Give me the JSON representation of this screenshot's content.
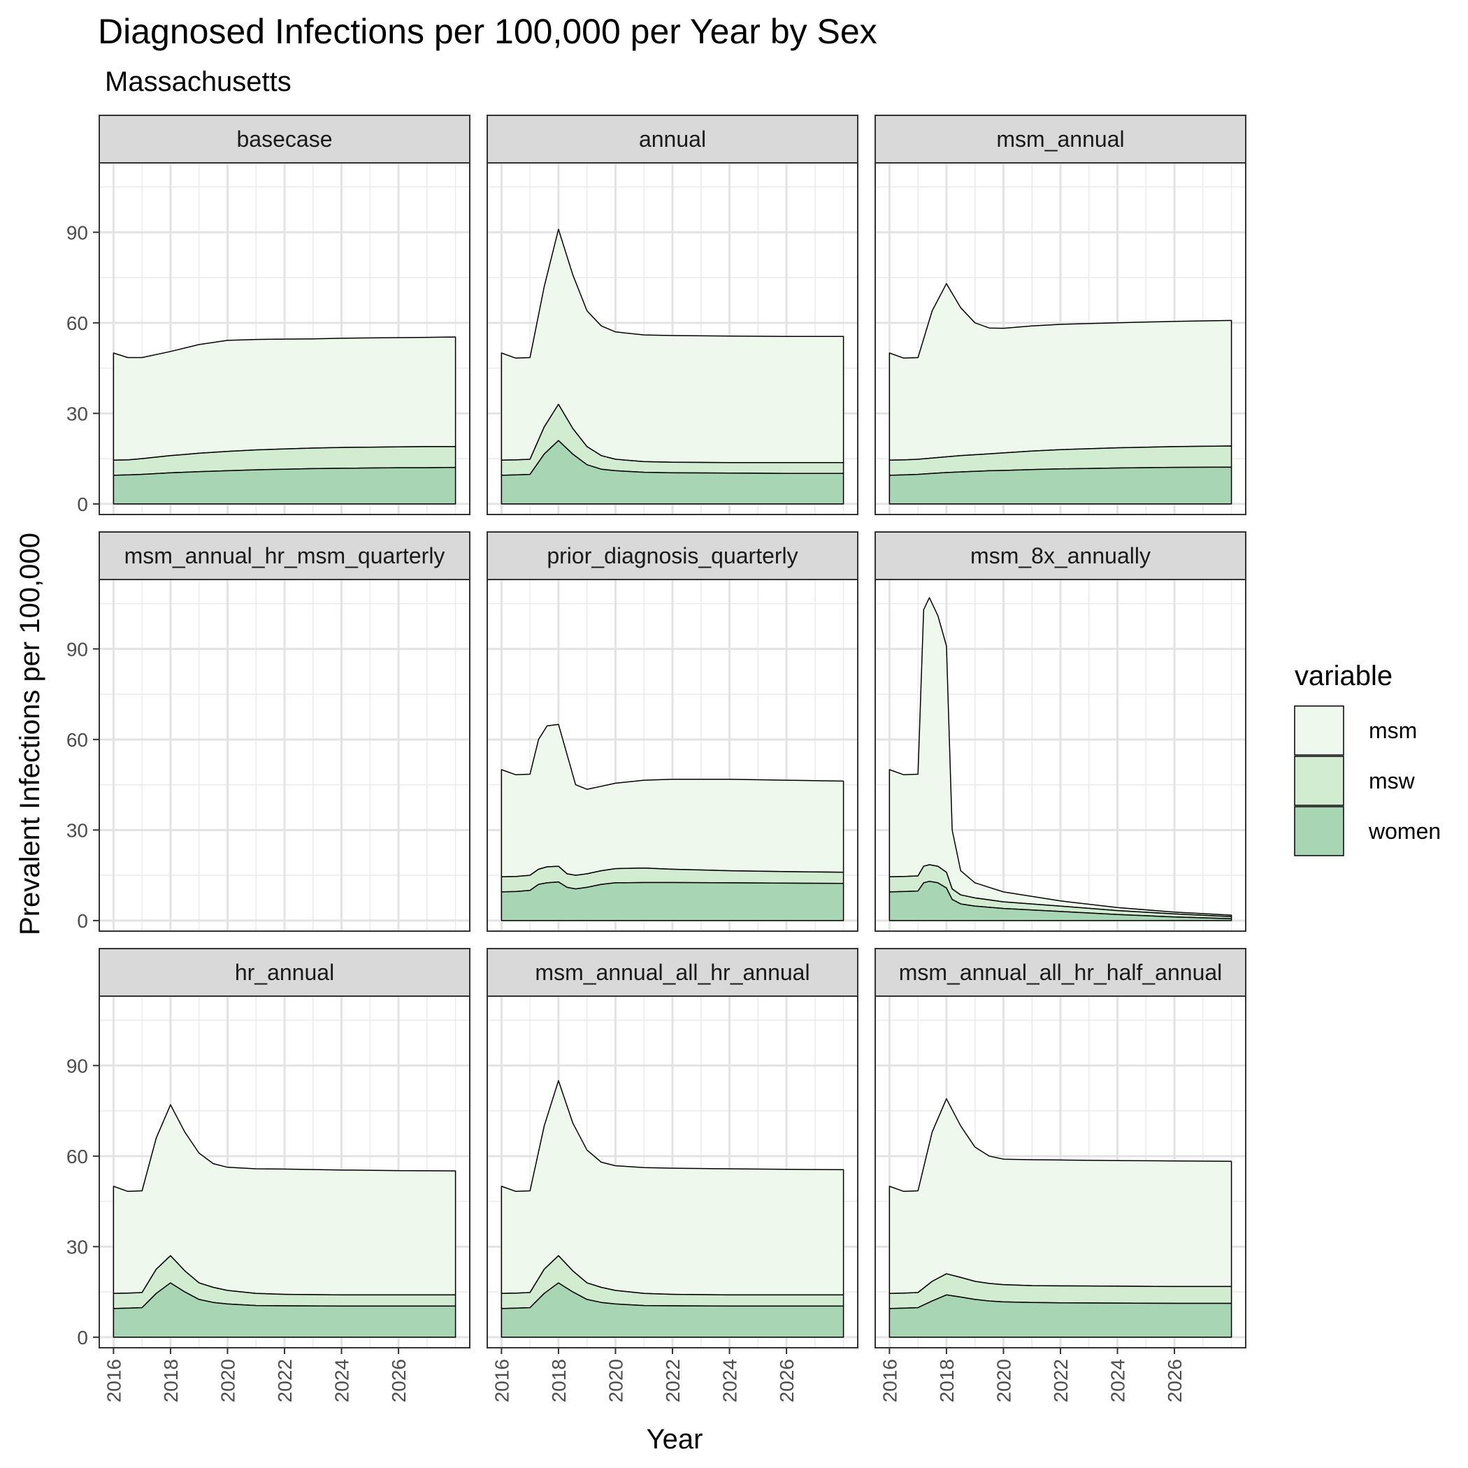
{
  "chart_data": {
    "type": "area",
    "stacked": true,
    "title": "Diagnosed Infections per 100,000 per Year by Sex",
    "subtitle": "Massachusetts",
    "xlabel": "Year",
    "ylabel": "Prevalent Infections per 100,000",
    "xlim": [
      2015.5,
      2028.5
    ],
    "ylim": [
      -3.5,
      113
    ],
    "x_ticks": [
      2016,
      2018,
      2020,
      2022,
      2024,
      2026
    ],
    "y_ticks": [
      0,
      30,
      60,
      90
    ],
    "grid": true,
    "legend": {
      "title": "variable",
      "position": "right",
      "entries": [
        {
          "name": "msm",
          "color": "#eff8ec"
        },
        {
          "name": "msw",
          "color": "#d1ecd0"
        },
        {
          "name": "women",
          "color": "#a8d6b4"
        }
      ]
    },
    "stack_order_bottom_to_top": [
      "women",
      "msw",
      "msm"
    ],
    "panels": [
      {
        "name": "basecase",
        "x": [
          2016,
          2016.5,
          2017,
          2018,
          2019,
          2020,
          2021,
          2022,
          2023,
          2024,
          2025,
          2026,
          2027,
          2028
        ],
        "women": [
          9.5,
          9.6,
          9.8,
          10.3,
          10.7,
          11.0,
          11.3,
          11.5,
          11.7,
          11.8,
          11.9,
          12.0,
          12.0,
          12.1
        ],
        "msw_top": [
          14.5,
          14.6,
          15.0,
          16.0,
          16.8,
          17.4,
          17.9,
          18.2,
          18.5,
          18.7,
          18.8,
          18.9,
          19.0,
          19.0
        ],
        "msm_top": [
          50.0,
          48.5,
          48.5,
          50.5,
          52.8,
          54.2,
          54.5,
          54.6,
          54.7,
          54.9,
          55.0,
          55.1,
          55.2,
          55.3
        ]
      },
      {
        "name": "annual",
        "x": [
          2016,
          2016.5,
          2017,
          2017.5,
          2018,
          2018.5,
          2019,
          2019.5,
          2020,
          2021,
          2022,
          2024,
          2026,
          2028
        ],
        "women": [
          9.5,
          9.6,
          9.8,
          16.5,
          21.0,
          16.5,
          13.0,
          11.5,
          11.0,
          10.5,
          10.3,
          10.2,
          10.1,
          10.1
        ],
        "msw_top": [
          14.5,
          14.6,
          14.8,
          25.5,
          33.0,
          25.0,
          19.0,
          16.0,
          14.8,
          14.0,
          13.8,
          13.7,
          13.7,
          13.7
        ],
        "msm_top": [
          50.0,
          48.3,
          48.5,
          72.0,
          91.0,
          76.0,
          64.0,
          59.0,
          57.0,
          56.0,
          55.8,
          55.6,
          55.5,
          55.5
        ]
      },
      {
        "name": "msm_annual",
        "x": [
          2016,
          2016.5,
          2017,
          2017.5,
          2018,
          2018.5,
          2019,
          2019.5,
          2020,
          2021,
          2022,
          2024,
          2026,
          2028
        ],
        "women": [
          9.5,
          9.6,
          9.8,
          10.1,
          10.4,
          10.6,
          10.8,
          11.0,
          11.1,
          11.4,
          11.6,
          11.9,
          12.1,
          12.2
        ],
        "msw_top": [
          14.5,
          14.6,
          14.8,
          15.2,
          15.6,
          16.0,
          16.3,
          16.6,
          16.9,
          17.5,
          18.0,
          18.6,
          19.0,
          19.2
        ],
        "msm_top": [
          50.0,
          48.3,
          48.5,
          64.0,
          73.0,
          65.0,
          60.0,
          58.3,
          58.2,
          59.0,
          59.5,
          60.0,
          60.5,
          60.8
        ]
      },
      {
        "name": "msm_annual_hr_msm_quarterly",
        "x": [],
        "women": [],
        "msw_top": [],
        "msm_top": []
      },
      {
        "name": "prior_diagnosis_quarterly",
        "x": [
          2016,
          2016.5,
          2017,
          2017.3,
          2017.6,
          2018,
          2018.3,
          2018.6,
          2019,
          2019.5,
          2020,
          2021,
          2022,
          2024,
          2026,
          2028
        ],
        "women": [
          9.5,
          9.6,
          10.0,
          12.0,
          12.5,
          12.8,
          11.0,
          10.5,
          11.0,
          12.0,
          12.5,
          12.6,
          12.6,
          12.5,
          12.4,
          12.3
        ],
        "msw_top": [
          14.5,
          14.6,
          15.0,
          17.0,
          17.8,
          18.0,
          15.5,
          15.0,
          15.5,
          16.5,
          17.2,
          17.4,
          17.0,
          16.5,
          16.2,
          16.0
        ],
        "msm_top": [
          50.0,
          48.3,
          48.5,
          60.0,
          64.5,
          65.0,
          55.0,
          45.0,
          43.5,
          44.5,
          45.5,
          46.5,
          46.8,
          46.8,
          46.5,
          46.2
        ]
      },
      {
        "name": "msm_8x_annually",
        "x": [
          2016,
          2016.5,
          2017,
          2017.2,
          2017.4,
          2017.7,
          2018,
          2018.2,
          2018.5,
          2019,
          2020,
          2022,
          2024,
          2026,
          2028
        ],
        "women": [
          9.5,
          9.6,
          9.8,
          12.5,
          13.0,
          12.5,
          10.8,
          7.0,
          5.5,
          4.8,
          4.0,
          3.0,
          2.0,
          1.2,
          0.6
        ],
        "msw_top": [
          14.5,
          14.6,
          14.8,
          18.0,
          18.5,
          18.0,
          16.0,
          10.5,
          8.5,
          7.5,
          6.2,
          4.8,
          3.3,
          2.2,
          1.3
        ],
        "msm_top": [
          50.0,
          48.3,
          48.5,
          103.0,
          107.0,
          101.0,
          91.0,
          30.0,
          16.5,
          12.5,
          9.5,
          6.5,
          4.3,
          2.8,
          1.8
        ]
      },
      {
        "name": "hr_annual",
        "x": [
          2016,
          2016.5,
          2017,
          2017.5,
          2018,
          2018.5,
          2019,
          2019.5,
          2020,
          2021,
          2022,
          2024,
          2026,
          2028
        ],
        "women": [
          9.5,
          9.6,
          9.8,
          14.5,
          18.0,
          15.0,
          12.5,
          11.5,
          11.0,
          10.5,
          10.4,
          10.3,
          10.3,
          10.3
        ],
        "msw_top": [
          14.5,
          14.6,
          14.8,
          22.5,
          27.0,
          22.0,
          18.0,
          16.5,
          15.5,
          14.5,
          14.2,
          14.0,
          14.0,
          14.0
        ],
        "msm_top": [
          50.0,
          48.3,
          48.5,
          66.0,
          77.0,
          68.0,
          61.0,
          57.5,
          56.3,
          55.8,
          55.7,
          55.4,
          55.2,
          55.1
        ]
      },
      {
        "name": "msm_annual_all_hr_annual",
        "x": [
          2016,
          2016.5,
          2017,
          2017.5,
          2018,
          2018.5,
          2019,
          2019.5,
          2020,
          2021,
          2022,
          2024,
          2026,
          2028
        ],
        "women": [
          9.5,
          9.6,
          9.8,
          14.5,
          18.0,
          15.0,
          12.5,
          11.5,
          11.0,
          10.5,
          10.4,
          10.3,
          10.3,
          10.3
        ],
        "msw_top": [
          14.5,
          14.6,
          14.8,
          22.5,
          27.0,
          22.0,
          18.0,
          16.5,
          15.5,
          14.5,
          14.2,
          14.0,
          14.0,
          14.0
        ],
        "msm_top": [
          50.0,
          48.3,
          48.5,
          70.0,
          85.0,
          71.0,
          62.0,
          58.0,
          56.8,
          56.2,
          56.0,
          55.8,
          55.6,
          55.5
        ]
      },
      {
        "name": "msm_annual_all_hr_half_annual",
        "x": [
          2016,
          2016.5,
          2017,
          2017.5,
          2018,
          2018.5,
          2019,
          2019.5,
          2020,
          2021,
          2022,
          2024,
          2026,
          2028
        ],
        "women": [
          9.5,
          9.6,
          9.8,
          12.0,
          14.0,
          13.3,
          12.5,
          12.0,
          11.7,
          11.5,
          11.4,
          11.3,
          11.2,
          11.2
        ],
        "msw_top": [
          14.5,
          14.6,
          14.8,
          18.5,
          21.0,
          19.8,
          18.5,
          17.8,
          17.4,
          17.1,
          17.0,
          16.9,
          16.8,
          16.8
        ],
        "msm_top": [
          50.0,
          48.3,
          48.5,
          68.0,
          79.0,
          70.0,
          63.0,
          60.0,
          59.0,
          58.8,
          58.7,
          58.5,
          58.4,
          58.3
        ]
      }
    ]
  }
}
